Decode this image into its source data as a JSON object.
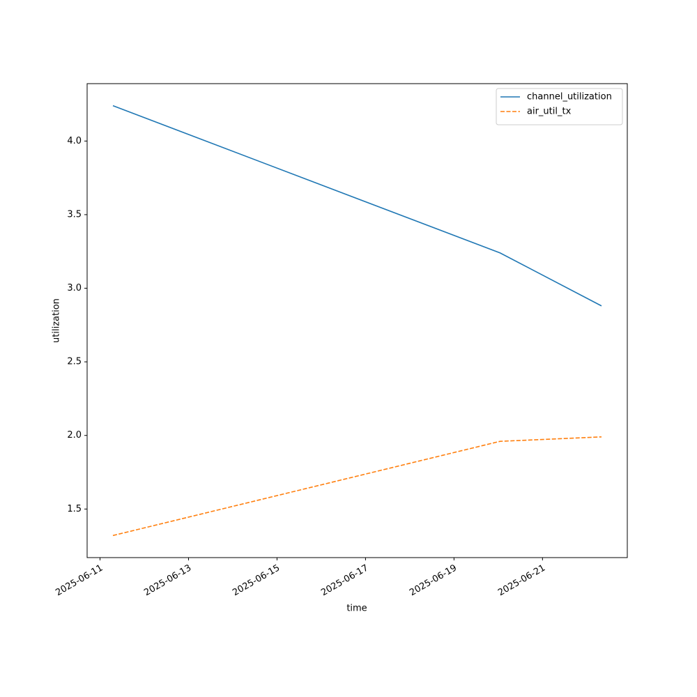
{
  "chart_data": {
    "type": "line",
    "x_label": "time",
    "y_label": "utilization",
    "x": [
      "2025-06-11T07:00",
      "2025-06-20T01:00",
      "2025-06-22T08:00"
    ],
    "series": [
      {
        "name": "channel_utilization",
        "color": "#1f77b4",
        "dash": "solid",
        "values": [
          4.24,
          3.24,
          2.88
        ]
      },
      {
        "name": "air_util_tx",
        "color": "#ff7f0e",
        "dash": "dashed",
        "values": [
          1.32,
          1.96,
          1.99
        ]
      }
    ],
    "xlim": [
      "2025-06-10T17:00",
      "2025-06-22T22:00"
    ],
    "xticks": [
      "2025-06-11",
      "2025-06-13",
      "2025-06-15",
      "2025-06-17",
      "2025-06-19",
      "2025-06-21"
    ],
    "ylim": [
      1.17,
      4.39
    ],
    "yticks": [
      {
        "value": 1.5,
        "label": "1.5"
      },
      {
        "value": 2.0,
        "label": "2.0"
      },
      {
        "value": 2.5,
        "label": "2.5"
      },
      {
        "value": 3.0,
        "label": "3.0"
      },
      {
        "value": 3.5,
        "label": "3.5"
      },
      {
        "value": 4.0,
        "label": "4.0"
      }
    ],
    "grid": false,
    "legend": "upper right"
  }
}
